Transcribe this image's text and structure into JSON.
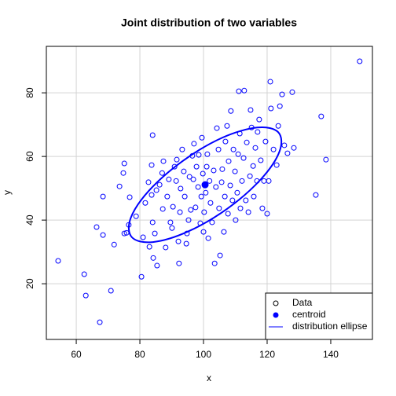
{
  "chart_data": {
    "type": "scatter",
    "title": "Joint distribution of two variables",
    "xlabel": "x",
    "ylabel": "y",
    "xlim": [
      50.6,
      153.1
    ],
    "ylim": [
      2.5,
      94.6
    ],
    "xticks": [
      60,
      80,
      100,
      120,
      140
    ],
    "yticks": [
      20,
      40,
      60,
      80
    ],
    "grid": true,
    "legend": "bottomright",
    "series": [
      {
        "name": "Data",
        "color": "#0000ff",
        "marker": "open",
        "x": [
          54.3,
          63.0,
          67.4,
          70.9,
          62.5,
          66.4,
          68.4,
          68.4,
          71.9,
          73.6,
          74.8,
          75.1,
          75.1,
          75.8,
          76.5,
          76.8,
          78.8,
          80.5,
          81.0,
          81.7,
          82.7,
          83.7,
          84.0,
          83.7,
          84.0,
          84.2,
          83.0,
          84.7,
          85.2,
          85.4,
          86.2,
          87.0,
          87.2,
          87.4,
          88.1,
          88.6,
          89.1,
          89.6,
          90.1,
          90.4,
          90.9,
          91.4,
          91.6,
          92.1,
          92.3,
          92.6,
          92.8,
          93.3,
          93.8,
          94.1,
          94.6,
          94.8,
          95.3,
          95.6,
          96.0,
          96.5,
          96.8,
          97.0,
          97.5,
          97.8,
          98.3,
          98.5,
          99.0,
          99.3,
          99.5,
          99.8,
          100.0,
          100.2,
          100.7,
          101.0,
          101.2,
          101.5,
          101.9,
          102.2,
          102.7,
          103.2,
          103.5,
          103.9,
          104.2,
          104.7,
          104.9,
          105.2,
          105.7,
          105.9,
          106.4,
          106.7,
          106.9,
          107.4,
          107.7,
          107.9,
          108.4,
          108.6,
          109.1,
          109.4,
          109.9,
          110.1,
          110.6,
          110.9,
          111.4,
          111.6,
          112.1,
          112.6,
          112.8,
          113.3,
          113.6,
          114.1,
          114.6,
          114.8,
          115.1,
          115.6,
          115.8,
          116.3,
          116.8,
          117.0,
          117.5,
          118.0,
          118.5,
          119.0,
          119.5,
          120.0,
          120.5,
          121.0,
          121.2,
          122.0,
          123.0,
          123.5,
          124.0,
          124.7,
          125.4,
          126.4,
          127.9,
          128.4,
          135.3,
          137.0,
          138.5,
          149.1,
          111.1
        ],
        "y": [
          27.2,
          16.3,
          7.9,
          17.8,
          23.0,
          37.8,
          35.3,
          47.4,
          32.3,
          50.6,
          54.8,
          57.8,
          35.8,
          36.0,
          38.5,
          47.2,
          41.2,
          22.2,
          34.6,
          45.4,
          51.9,
          57.3,
          66.7,
          47.9,
          39.3,
          28.1,
          31.6,
          35.8,
          49.4,
          25.7,
          51.1,
          54.8,
          43.5,
          58.5,
          31.4,
          47.4,
          52.8,
          39.3,
          37.5,
          44.2,
          56.8,
          52.3,
          59.0,
          33.3,
          26.4,
          42.5,
          49.9,
          62.2,
          55.3,
          47.4,
          32.6,
          35.8,
          40.0,
          53.6,
          43.2,
          60.2,
          52.8,
          64.0,
          44.0,
          56.8,
          50.4,
          60.5,
          39.0,
          47.4,
          65.9,
          54.6,
          36.3,
          42.5,
          48.6,
          56.8,
          60.7,
          34.3,
          52.3,
          45.4,
          39.3,
          55.6,
          26.4,
          50.4,
          68.9,
          62.2,
          43.7,
          28.9,
          51.9,
          56.0,
          36.3,
          47.4,
          64.7,
          69.6,
          42.0,
          58.5,
          50.9,
          74.3,
          46.2,
          62.2,
          55.3,
          40.0,
          48.6,
          60.7,
          67.2,
          43.7,
          52.3,
          59.5,
          80.7,
          46.2,
          64.4,
          42.5,
          53.8,
          74.6,
          69.1,
          57.0,
          47.4,
          62.7,
          52.3,
          67.7,
          71.6,
          58.8,
          43.7,
          52.3,
          64.7,
          42.0,
          52.3,
          83.5,
          75.1,
          62.2,
          57.3,
          69.6,
          75.8,
          79.5,
          63.5,
          61.0,
          80.2,
          62.7,
          47.9,
          72.6,
          59.0,
          89.9,
          80.5
        ]
      },
      {
        "name": "centroid",
        "color": "#0000ff",
        "marker": "filled",
        "x": [
          100.5
        ],
        "y": [
          51.1
        ]
      },
      {
        "name": "distribution ellipse",
        "color": "#0000ff",
        "marker": "line",
        "x": [
          123.5,
          123.9,
          118.1,
          107.5,
          95.1,
          84.1,
          77.5,
          77.1,
          82.9,
          93.5,
          105.9,
          116.9
        ],
        "y": [
          67.6,
          61.6,
          52.9,
          43.6,
          36.4,
          33.1,
          34.6,
          40.6,
          49.3,
          58.6,
          65.9,
          69.1
        ]
      }
    ]
  }
}
